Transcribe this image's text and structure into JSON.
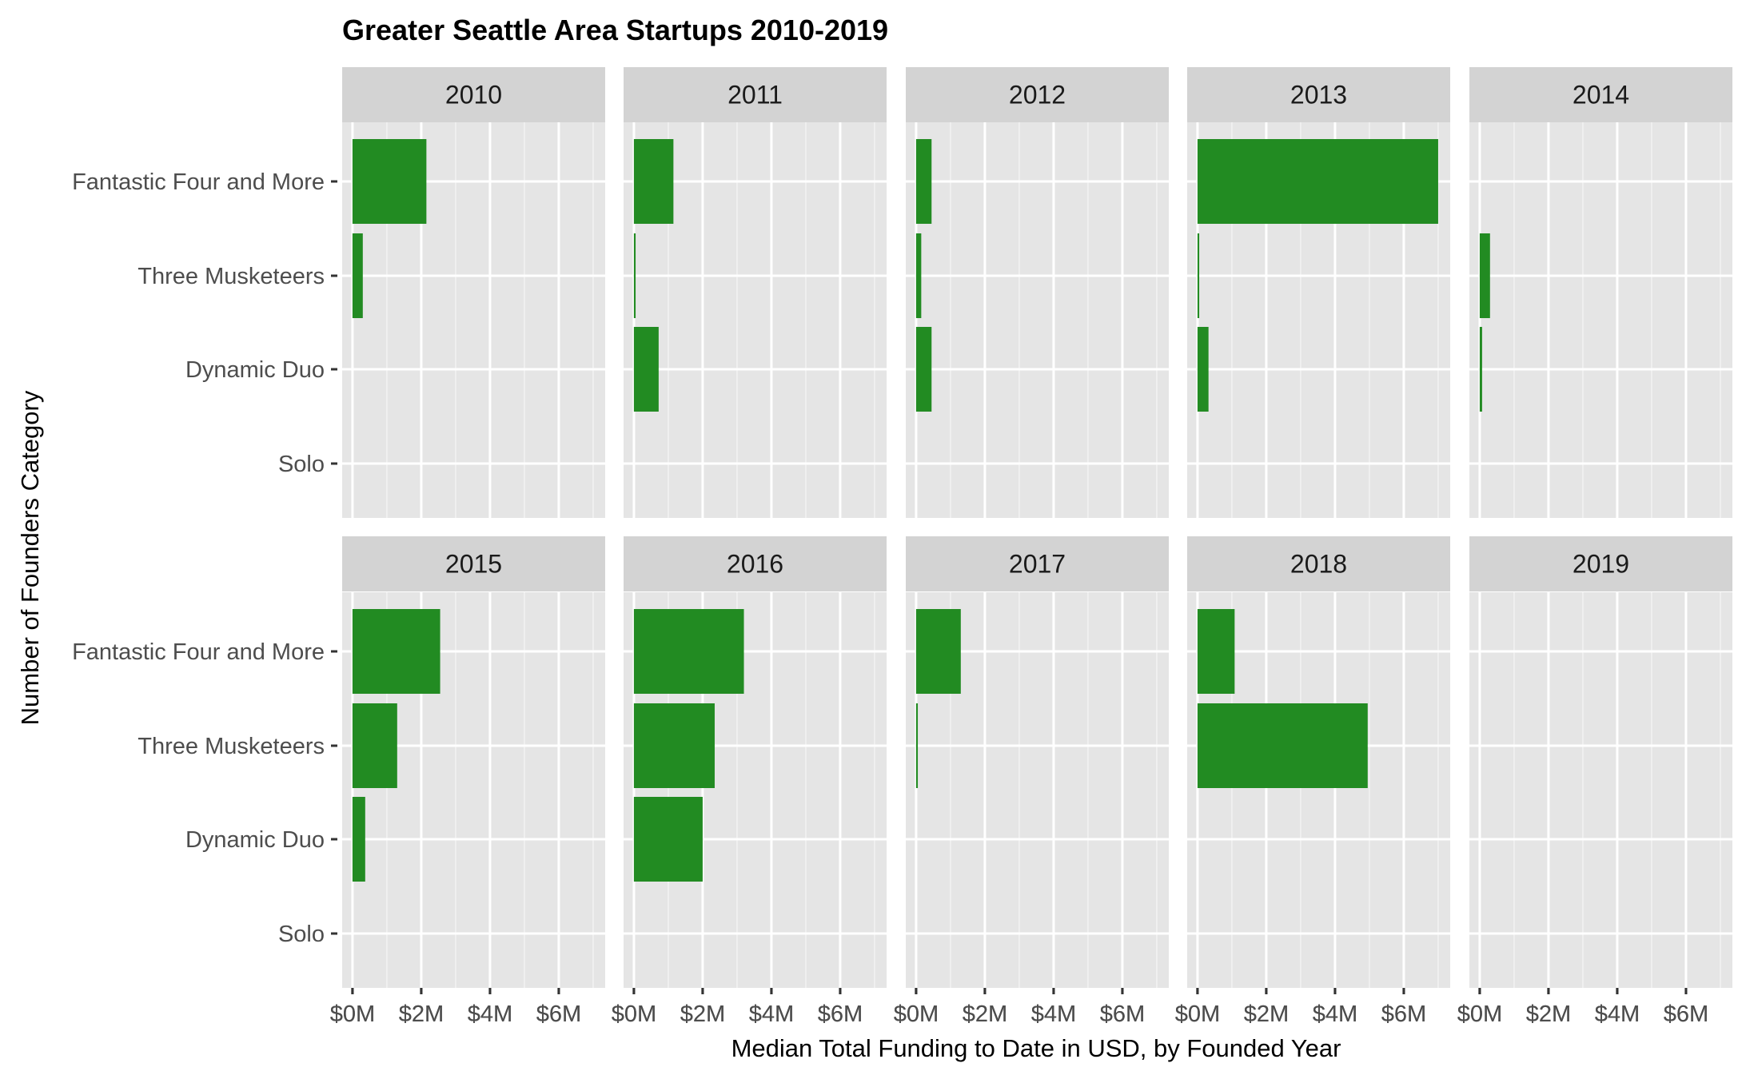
{
  "chart_data": {
    "type": "bar",
    "orientation": "horizontal",
    "faceted": true,
    "title": "Greater Seattle Area Startups 2010-2019",
    "xlabel": "Median Total Funding to Date in USD, by Founded Year",
    "ylabel": "Number of Founders Category",
    "categories": [
      "Fantastic Four and More",
      "Three Musketeers",
      "Dynamic Duo",
      "Solo"
    ],
    "x_ticks": [
      0,
      2,
      4,
      6
    ],
    "x_tick_labels": [
      "$0M",
      "$2M",
      "$4M",
      "$6M"
    ],
    "xlim": [
      -0.3,
      7.35
    ],
    "x_units": "million USD",
    "grid": true,
    "bar_color": "#228B22",
    "panel_background": "#E5E5E5",
    "strip_background": "#D3D3D3",
    "facets": [
      {
        "label": "2010",
        "values": [
          2.15,
          0.3,
          0,
          0
        ]
      },
      {
        "label": "2011",
        "values": [
          1.15,
          0.05,
          0.72,
          0
        ]
      },
      {
        "label": "2012",
        "values": [
          0.45,
          0.15,
          0.45,
          0
        ]
      },
      {
        "label": "2013",
        "values": [
          7.0,
          0.05,
          0.32,
          0
        ]
      },
      {
        "label": "2014",
        "values": [
          0,
          0.3,
          0.07,
          0
        ]
      },
      {
        "label": "2015",
        "values": [
          2.55,
          1.3,
          0.37,
          0
        ]
      },
      {
        "label": "2016",
        "values": [
          3.2,
          2.35,
          2.0,
          0
        ]
      },
      {
        "label": "2017",
        "values": [
          1.3,
          0.05,
          0,
          0
        ]
      },
      {
        "label": "2018",
        "values": [
          1.08,
          4.95,
          0,
          0
        ]
      },
      {
        "label": "2019",
        "values": [
          0,
          0,
          0,
          0
        ]
      }
    ]
  }
}
